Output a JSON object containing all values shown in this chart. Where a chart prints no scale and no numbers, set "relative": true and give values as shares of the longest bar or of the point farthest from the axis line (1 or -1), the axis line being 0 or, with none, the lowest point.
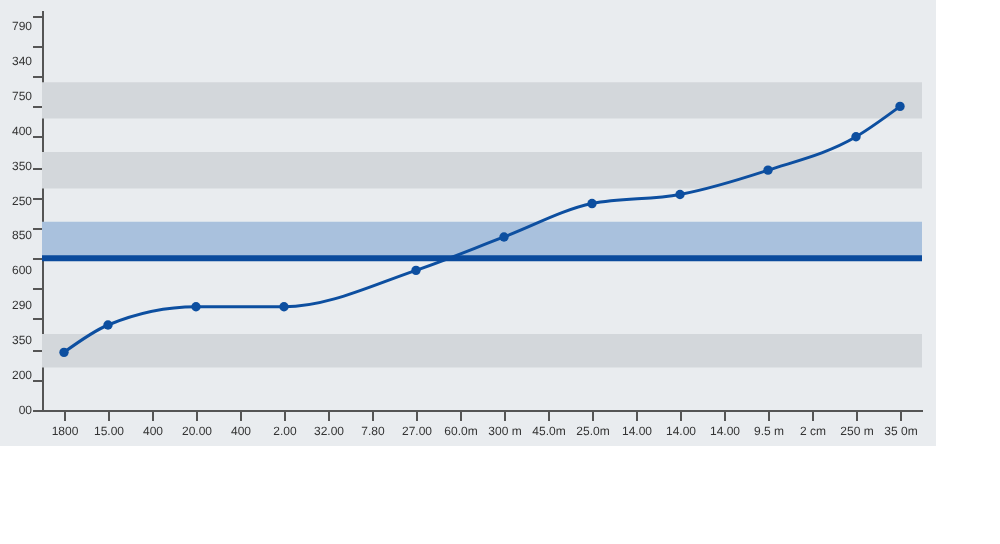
{
  "chart_data": {
    "type": "line",
    "relative": true,
    "categories": [
      "1800",
      "15.00",
      "400",
      "20.00",
      "400",
      "2.00",
      "32.00",
      "7.80",
      "27.00",
      "60.0m",
      "300 m",
      "45.0m",
      "25.0m",
      "14.00",
      "14.00",
      "14.00",
      "9.5 m",
      "2 cm",
      "250 m",
      "35 0m"
    ],
    "series": [
      {
        "color": "#0d4fa0",
        "values": [
          0.19,
          0.28,
          null,
          0.34,
          null,
          0.34,
          null,
          null,
          0.46,
          null,
          0.57,
          null,
          0.68,
          null,
          0.71,
          null,
          0.79,
          null,
          0.9,
          1
        ]
      }
    ],
    "annotations": [
      "790",
      "340",
      "750",
      "400",
      "350",
      "250",
      "850",
      "600",
      "290",
      "350",
      "200",
      "00"
    ],
    "ref_lines": [
      {
        "axis": "y",
        "value": 0.5,
        "color": "#0a4a9c"
      }
    ],
    "bands": [
      {
        "axis": "y",
        "from": 0.14,
        "to": 0.25,
        "color": "#d3d7db"
      },
      {
        "axis": "y",
        "from": 0.5,
        "to": 0.62,
        "color": "#a9c1dd"
      },
      {
        "axis": "y",
        "from": 0.73,
        "to": 0.85,
        "color": "#d3d7db"
      },
      {
        "axis": "y",
        "from": 0.96,
        "to": 1.08,
        "color": "#d3d7db"
      }
    ],
    "marker": "circle",
    "line_style": "solid"
  }
}
